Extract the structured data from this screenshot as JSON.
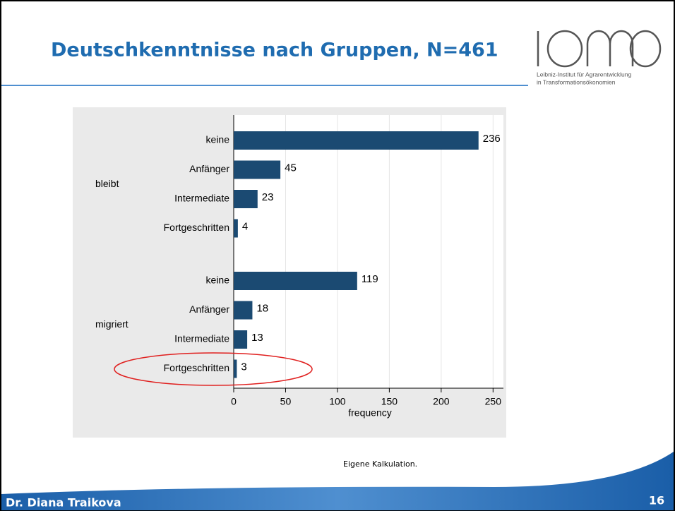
{
  "slide": {
    "title": "Deutschkenntnisse nach Gruppen, N=461",
    "logo_lines": [
      "Leibniz-Institut für Agrarentwicklung",
      "in Transformationsökonomien"
    ],
    "source_note": "Eigene Kalkulation.",
    "author": "Dr. Diana Traikova",
    "page_number": "16"
  },
  "chart_data": {
    "type": "bar",
    "orientation": "horizontal",
    "color": "#1b4a72",
    "groups": [
      {
        "label": "bleibt",
        "categories": [
          "keine",
          "Anfänger",
          "Intermediate",
          "Fortgeschritten"
        ],
        "values": [
          236,
          45,
          23,
          4
        ]
      },
      {
        "label": "migriert",
        "categories": [
          "keine",
          "Anfänger",
          "Intermediate",
          "Fortgeschritten"
        ],
        "values": [
          119,
          18,
          13,
          3
        ]
      }
    ],
    "xlabel": "frequency",
    "xlim": [
      0,
      260
    ],
    "xticks": [
      0,
      50,
      100,
      150,
      200,
      250
    ],
    "grid": true
  }
}
